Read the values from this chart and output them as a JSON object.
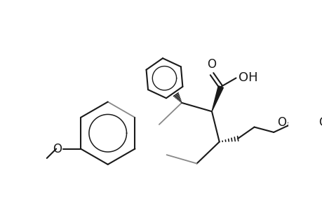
{
  "bg_color": "#ffffff",
  "lc": "#1a1a1a",
  "gc": "#888888",
  "lw": 1.5,
  "glw": 1.3,
  "fs": 12,
  "figsize": [
    4.6,
    3.0
  ],
  "dpi": 100,
  "xlim": [
    0.0,
    4.6
  ],
  "ylim": [
    0.0,
    3.0
  ]
}
